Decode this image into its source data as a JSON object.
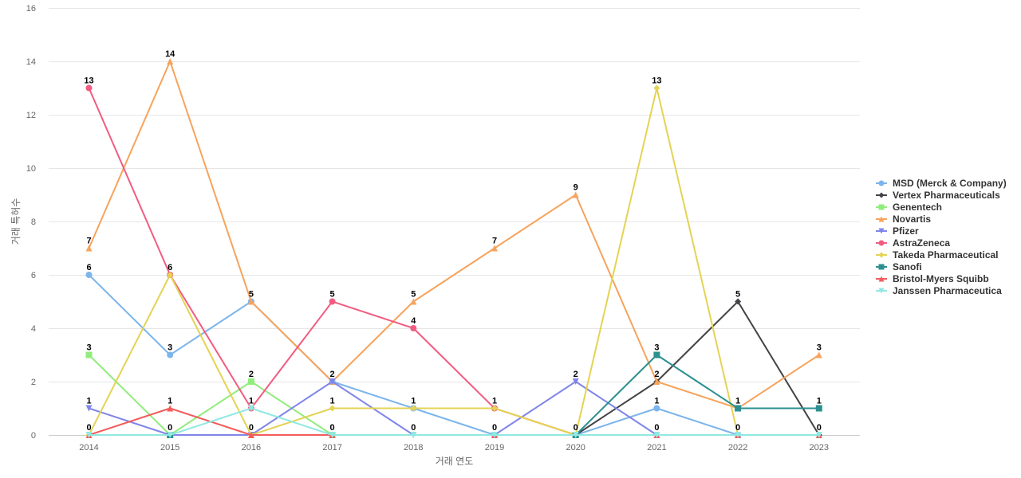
{
  "chart_data": {
    "type": "line",
    "title": "",
    "xlabel": "거래 연도",
    "ylabel": "거래 특허수",
    "x": [
      "2014",
      "2015",
      "2016",
      "2017",
      "2018",
      "2019",
      "2020",
      "2021",
      "2022",
      "2023"
    ],
    "ylim": [
      0,
      16
    ],
    "yticks": [
      "0",
      "2",
      "4",
      "6",
      "8",
      "10",
      "12",
      "14",
      "16"
    ],
    "grid": "horizontal",
    "legend_position": "right",
    "series": [
      {
        "name": "MSD (Merck & Company)",
        "color": "#7cb5ec",
        "marker": "circle",
        "values": [
          6,
          3,
          5,
          2,
          1,
          0,
          0,
          1,
          0,
          null
        ]
      },
      {
        "name": "Vertex Pharmaceuticals",
        "color": "#434348",
        "marker": "diamond",
        "values": [
          null,
          null,
          null,
          null,
          null,
          null,
          0,
          2,
          5,
          0
        ]
      },
      {
        "name": "Genentech",
        "color": "#90ed7d",
        "marker": "square",
        "values": [
          3,
          0,
          2,
          0,
          null,
          null,
          null,
          null,
          null,
          null
        ]
      },
      {
        "name": "Novartis",
        "color": "#f7a35c",
        "marker": "triangle",
        "values": [
          7,
          14,
          5,
          2,
          5,
          7,
          9,
          2,
          1,
          3
        ]
      },
      {
        "name": "Pfizer",
        "color": "#8085e9",
        "marker": "triangle-down",
        "values": [
          1,
          0,
          0,
          2,
          0,
          0,
          2,
          0,
          null,
          null
        ]
      },
      {
        "name": "AstraZeneca",
        "color": "#f15c80",
        "marker": "circle",
        "values": [
          13,
          6,
          1,
          5,
          4,
          1,
          0,
          null,
          null,
          null
        ]
      },
      {
        "name": "Takeda Pharmaceutical",
        "color": "#e4d354",
        "marker": "diamond",
        "values": [
          0,
          6,
          0,
          1,
          1,
          1,
          0,
          13,
          0,
          null
        ]
      },
      {
        "name": "Sanofi",
        "color": "#2b908f",
        "marker": "square",
        "values": [
          null,
          0,
          null,
          null,
          null,
          null,
          0,
          3,
          1,
          1
        ]
      },
      {
        "name": "Bristol-Myers Squibb",
        "color": "#f45b5b",
        "marker": "triangle",
        "values": [
          0,
          1,
          0,
          0,
          null,
          0,
          null,
          0,
          0,
          0
        ]
      },
      {
        "name": "Janssen Pharmaceutica",
        "color": "#91e8e1",
        "marker": "triangle-down",
        "values": [
          0,
          0,
          1,
          0,
          0,
          0,
          0,
          0,
          0,
          0
        ]
      }
    ],
    "data_labels": [
      {
        "x": "2014",
        "y": 13,
        "text": "13"
      },
      {
        "x": "2014",
        "y": 7,
        "text": "7"
      },
      {
        "x": "2014",
        "y": 6,
        "text": "6"
      },
      {
        "x": "2014",
        "y": 3,
        "text": "3"
      },
      {
        "x": "2014",
        "y": 1,
        "text": "1"
      },
      {
        "x": "2014",
        "y": 0,
        "text": "0"
      },
      {
        "x": "2015",
        "y": 14,
        "text": "14"
      },
      {
        "x": "2015",
        "y": 6,
        "text": "6"
      },
      {
        "x": "2015",
        "y": 3,
        "text": "3"
      },
      {
        "x": "2015",
        "y": 1,
        "text": "1"
      },
      {
        "x": "2015",
        "y": 0,
        "text": "0"
      },
      {
        "x": "2016",
        "y": 5,
        "text": "5"
      },
      {
        "x": "2016",
        "y": 2,
        "text": "2"
      },
      {
        "x": "2016",
        "y": 1,
        "text": "1"
      },
      {
        "x": "2016",
        "y": 0,
        "text": "0"
      },
      {
        "x": "2017",
        "y": 5,
        "text": "5"
      },
      {
        "x": "2017",
        "y": 2,
        "text": "2"
      },
      {
        "x": "2017",
        "y": 1,
        "text": "1"
      },
      {
        "x": "2017",
        "y": 0,
        "text": "0"
      },
      {
        "x": "2018",
        "y": 5,
        "text": "5"
      },
      {
        "x": "2018",
        "y": 4,
        "text": "4"
      },
      {
        "x": "2018",
        "y": 1,
        "text": "1"
      },
      {
        "x": "2018",
        "y": 0,
        "text": "0"
      },
      {
        "x": "2019",
        "y": 7,
        "text": "7"
      },
      {
        "x": "2019",
        "y": 1,
        "text": "1"
      },
      {
        "x": "2019",
        "y": 0,
        "text": "0"
      },
      {
        "x": "2020",
        "y": 9,
        "text": "9"
      },
      {
        "x": "2020",
        "y": 2,
        "text": "2"
      },
      {
        "x": "2020",
        "y": 0,
        "text": "0"
      },
      {
        "x": "2021",
        "y": 13,
        "text": "13"
      },
      {
        "x": "2021",
        "y": 3,
        "text": "3"
      },
      {
        "x": "2021",
        "y": 2,
        "text": "2"
      },
      {
        "x": "2021",
        "y": 1,
        "text": "1"
      },
      {
        "x": "2021",
        "y": 0,
        "text": "0"
      },
      {
        "x": "2022",
        "y": 5,
        "text": "5"
      },
      {
        "x": "2022",
        "y": 1,
        "text": "1"
      },
      {
        "x": "2022",
        "y": 0,
        "text": "0"
      },
      {
        "x": "2023",
        "y": 3,
        "text": "3"
      },
      {
        "x": "2023",
        "y": 1,
        "text": "1"
      },
      {
        "x": "2023",
        "y": 0,
        "text": "0"
      }
    ]
  }
}
